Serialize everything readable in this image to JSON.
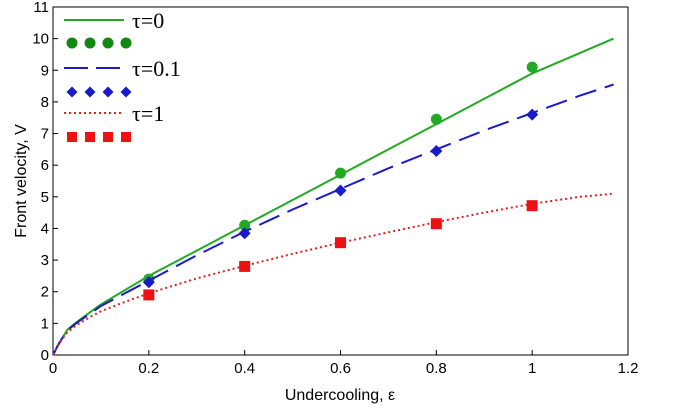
{
  "chart_data": {
    "type": "line",
    "xlabel": "Undercooling, ε",
    "ylabel": "Front velocity, V",
    "xlim": [
      0,
      1.2
    ],
    "ylim": [
      0,
      11
    ],
    "x_ticks": [
      "0",
      "0.2",
      "0.4",
      "0.6",
      "0.8",
      "1",
      "1.2"
    ],
    "y_ticks": [
      "0",
      "1",
      "2",
      "3",
      "4",
      "5",
      "6",
      "7",
      "8",
      "9",
      "10",
      "11"
    ],
    "grid": false,
    "legend_position": "top-left",
    "series": [
      {
        "name": "τ=0",
        "kind": "line",
        "style": "solid",
        "color": "#22aa22",
        "x": [
          0,
          0.005,
          0.01,
          0.02,
          0.03,
          0.05,
          0.08,
          0.1,
          0.15,
          0.2,
          0.3,
          0.4,
          0.5,
          0.6,
          0.7,
          0.8,
          0.9,
          1.0,
          1.1,
          1.17
        ],
        "y": [
          0,
          0.15,
          0.3,
          0.55,
          0.8,
          1.05,
          1.38,
          1.6,
          2.05,
          2.5,
          3.3,
          4.1,
          4.9,
          5.7,
          6.5,
          7.3,
          8.1,
          8.9,
          9.55,
          10.0
        ]
      },
      {
        "name": "τ=0",
        "kind": "markers",
        "marker": "circle",
        "color": "#22aa22",
        "x": [
          0.2,
          0.4,
          0.6,
          0.8,
          1.0
        ],
        "y": [
          2.4,
          4.1,
          5.75,
          7.45,
          9.1
        ]
      },
      {
        "name": "τ=0.1",
        "kind": "line",
        "style": "dashed",
        "color": "#1a1acc",
        "x": [
          0,
          0.005,
          0.01,
          0.02,
          0.03,
          0.05,
          0.08,
          0.1,
          0.15,
          0.2,
          0.3,
          0.4,
          0.5,
          0.6,
          0.7,
          0.8,
          0.9,
          1.0,
          1.1,
          1.17
        ],
        "y": [
          0,
          0.15,
          0.3,
          0.55,
          0.78,
          1.02,
          1.33,
          1.55,
          1.95,
          2.35,
          3.15,
          3.9,
          4.6,
          5.25,
          5.9,
          6.5,
          7.1,
          7.65,
          8.2,
          8.55
        ]
      },
      {
        "name": "τ=0.1",
        "kind": "markers",
        "marker": "diamond",
        "color": "#1a1acc",
        "x": [
          0.2,
          0.4,
          0.6,
          0.8,
          1.0
        ],
        "y": [
          2.3,
          3.85,
          5.2,
          6.45,
          7.6
        ]
      },
      {
        "name": "τ=1",
        "kind": "line",
        "style": "dotted",
        "color": "#dd2222",
        "x": [
          0,
          0.005,
          0.01,
          0.02,
          0.03,
          0.05,
          0.08,
          0.1,
          0.15,
          0.2,
          0.3,
          0.4,
          0.5,
          0.6,
          0.7,
          0.8,
          0.9,
          1.0,
          1.1,
          1.17
        ],
        "y": [
          0,
          0.15,
          0.3,
          0.52,
          0.72,
          0.95,
          1.22,
          1.38,
          1.68,
          1.95,
          2.42,
          2.82,
          3.2,
          3.55,
          3.88,
          4.2,
          4.5,
          4.78,
          5.0,
          5.1
        ]
      },
      {
        "name": "τ=1",
        "kind": "markers",
        "marker": "square",
        "color": "#ee1111",
        "x": [
          0.2,
          0.4,
          0.6,
          0.8,
          1.0
        ],
        "y": [
          1.9,
          2.8,
          3.55,
          4.15,
          4.72
        ]
      }
    ],
    "legend": [
      {
        "label": "τ=0",
        "kind": "line",
        "style": "solid",
        "color": "#22aa22"
      },
      {
        "label": "",
        "kind": "markers",
        "marker": "circle",
        "color": "#118811"
      },
      {
        "label": "τ=0.1",
        "kind": "line",
        "style": "dashed",
        "color": "#1a1acc"
      },
      {
        "label": "",
        "kind": "markers",
        "marker": "diamond",
        "color": "#1a1acc"
      },
      {
        "label": "τ=1",
        "kind": "line",
        "style": "dotted",
        "color": "#dd2222"
      },
      {
        "label": "",
        "kind": "markers",
        "marker": "square",
        "color": "#ee1111"
      }
    ]
  }
}
